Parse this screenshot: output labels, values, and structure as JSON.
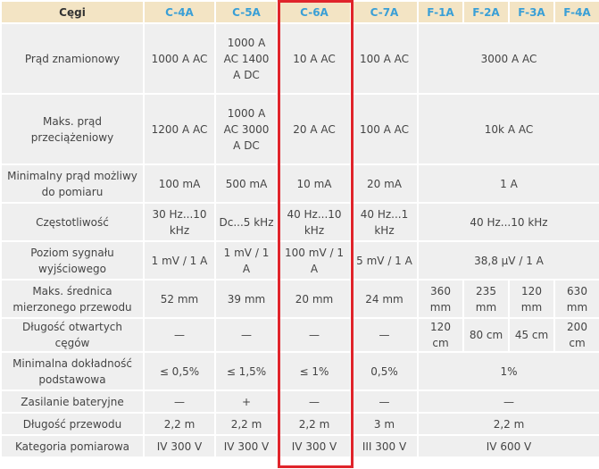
{
  "table": {
    "header": [
      "Cęgi",
      "C-4A",
      "C-5A",
      "C-6A",
      "C-7A",
      "F-1A",
      "F-2A",
      "F-3A",
      "F-4A"
    ],
    "rows": [
      [
        "Prąd znamionowy",
        "1000 A AC",
        "1000 A AC 1400 A DC",
        "10 A AC",
        "100 A AC",
        "3000 A AC"
      ],
      [
        "Maks. prąd przeciążeniowy",
        "1200 A AC",
        "1000 A AC 3000 A DC",
        "20 A AC",
        "100 A AC",
        "10k A AC"
      ],
      [
        "Minimalny prąd możliwy do pomiaru",
        "100 mA",
        "500 mA",
        "10 mA",
        "20 mA",
        "1 A"
      ],
      [
        "Częstotliwość",
        "30 Hz...10 kHz",
        "Dc...5 kHz",
        "40 Hz...10 kHz",
        "40 Hz...1 kHz",
        "40 Hz...10 kHz"
      ],
      [
        "Poziom sygnału wyjściowego",
        "1 mV / 1 A",
        "1 mV / 1 A",
        "100 mV / 1 A",
        "5 mV / 1 A",
        "38,8 µV / 1 A"
      ],
      [
        "Maks. średnica mierzonego przewodu",
        "52 mm",
        "39 mm",
        "20 mm",
        "24 mm",
        "360 mm",
        "235 mm",
        "120 mm",
        "630 mm"
      ],
      [
        "Długość otwartych cęgów",
        "—",
        "—",
        "—",
        "—",
        "120 cm",
        "80 cm",
        "45 cm",
        "200 cm"
      ],
      [
        "Minimalna dokładność podstawowa",
        "≤ 0,5%",
        "≤ 1,5%",
        "≤ 1%",
        "0,5%",
        "1%"
      ],
      [
        "Zasilanie bateryjne",
        "—",
        "+",
        "—",
        "—",
        "—"
      ],
      [
        "Długość przewodu",
        "2,2 m",
        "2,2 m",
        "2,2 m",
        "3 m",
        "2,2 m"
      ],
      [
        "Kategoria pomiarowa",
        "IV 300 V",
        "IV 300 V",
        "IV 300 V",
        "III 300 V",
        "IV 600 V"
      ]
    ]
  }
}
